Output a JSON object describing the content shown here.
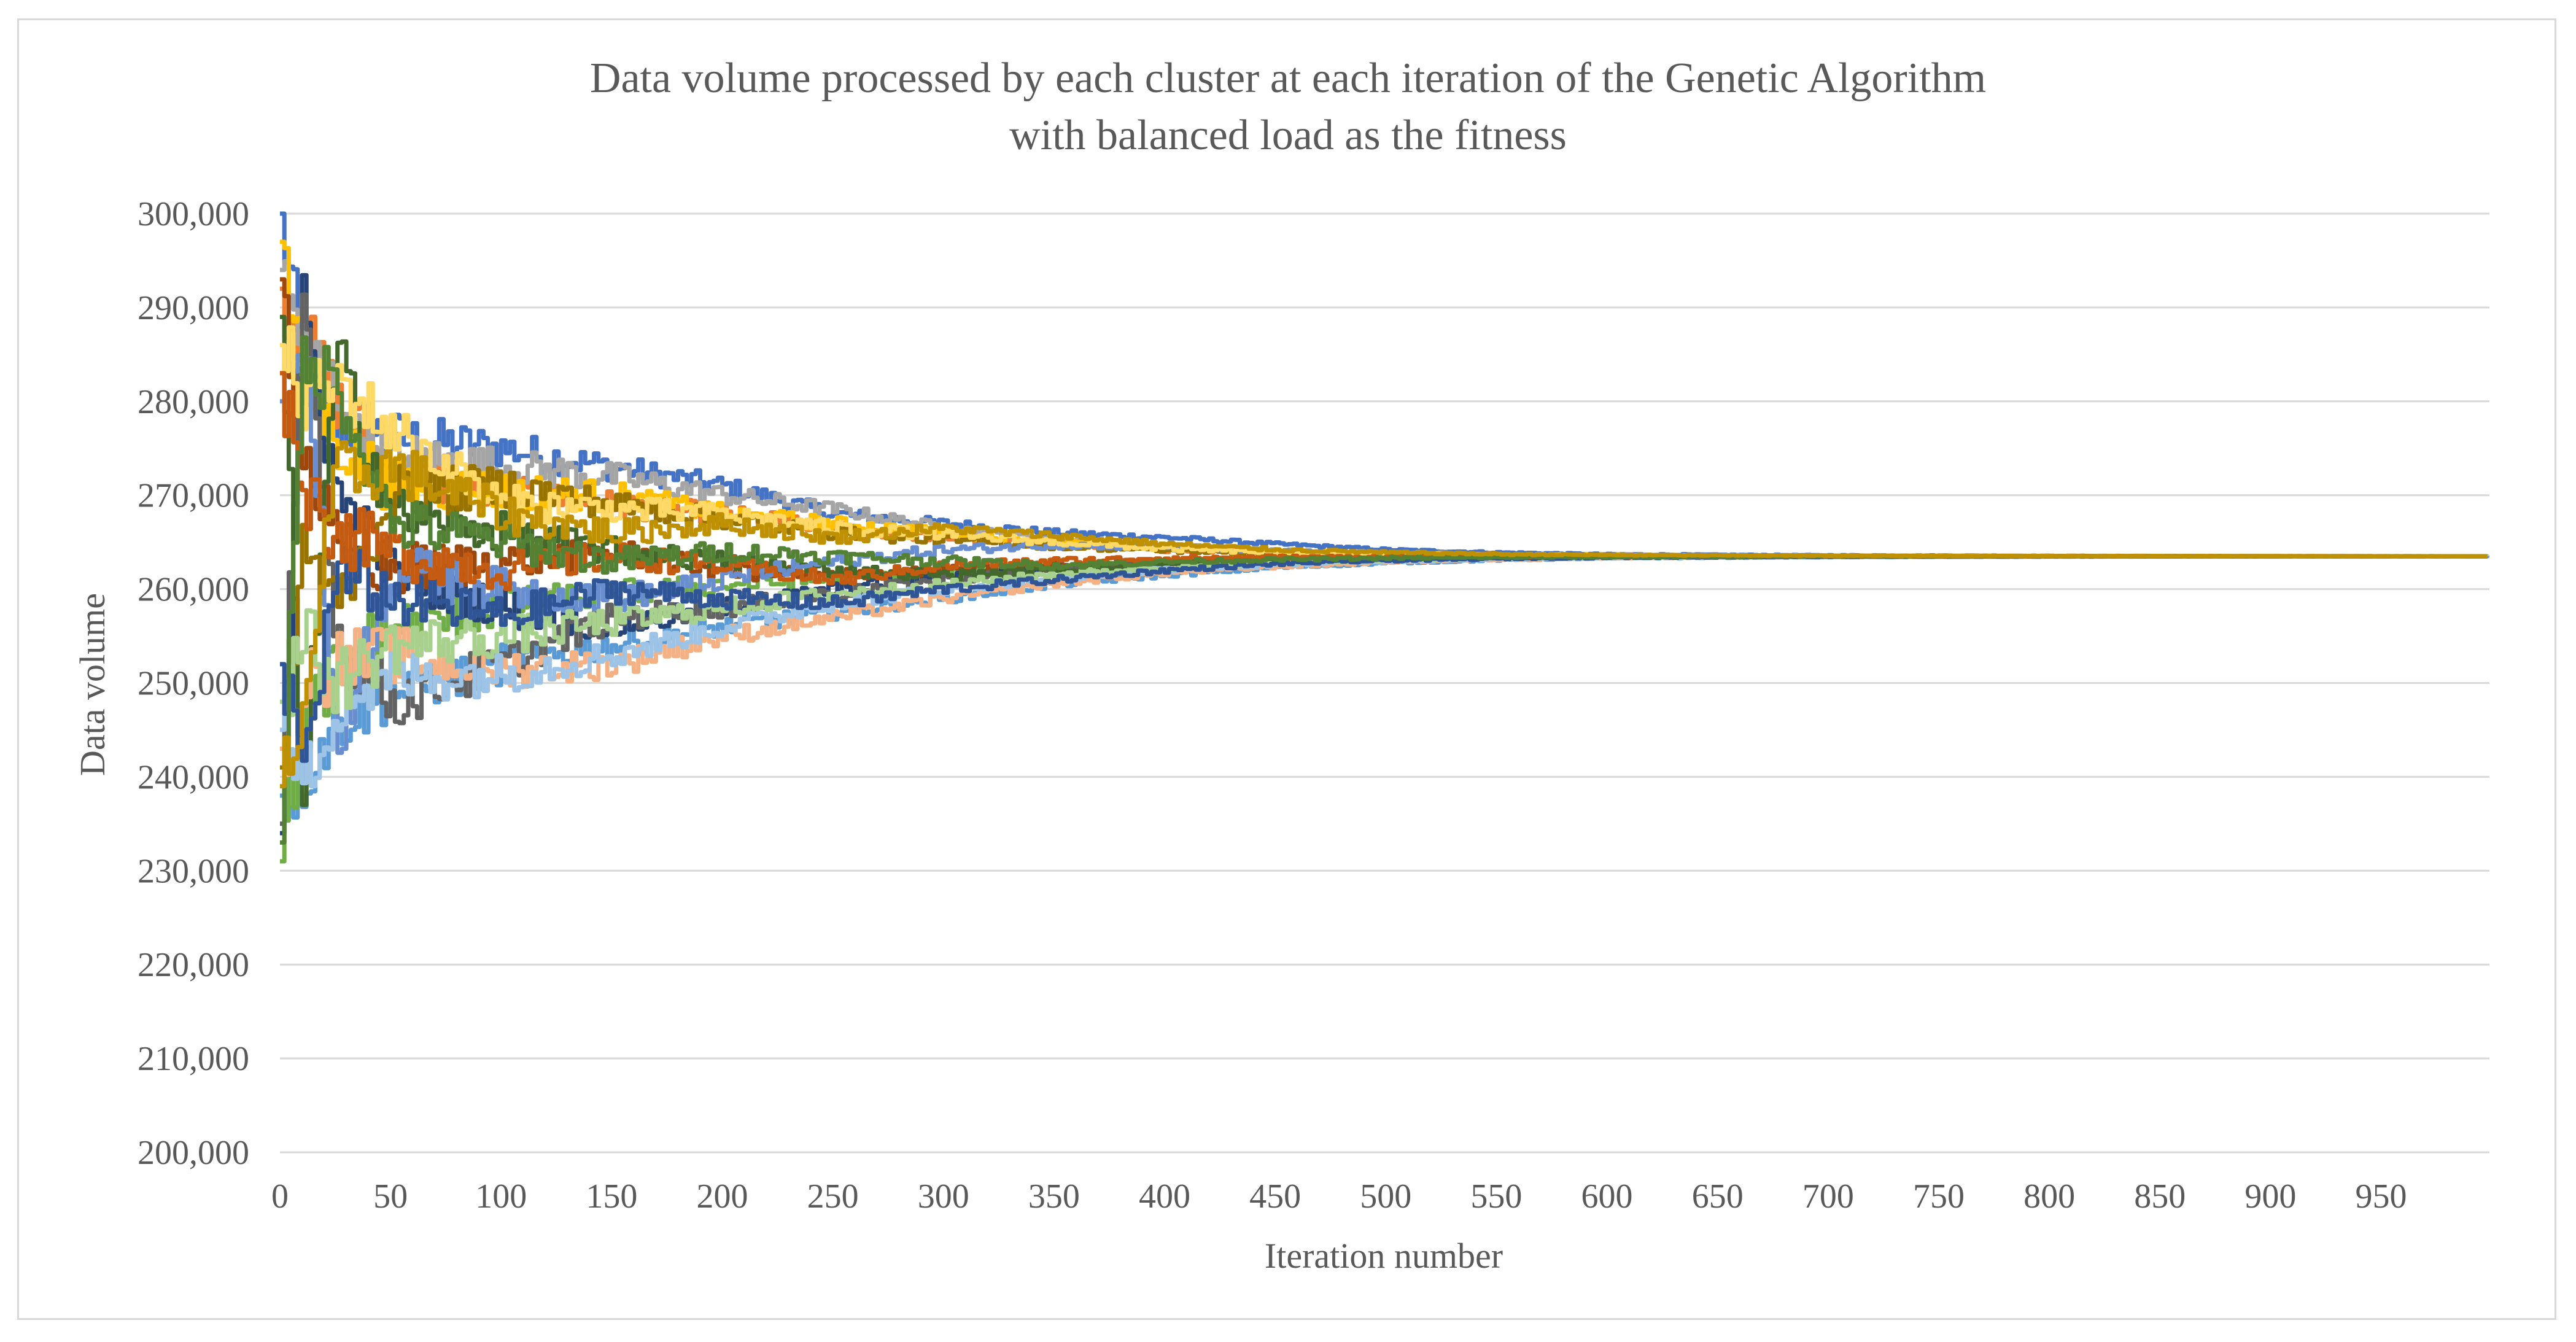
{
  "chart_data": {
    "type": "line",
    "title": "Data volume processed by each cluster at each iteration of the Genetic Algorithm",
    "subtitle": "with balanced load as the fitness",
    "xlabel": "Iteration number",
    "ylabel": "Data volume",
    "xlim": [
      0,
      999
    ],
    "ylim": [
      200000,
      300000
    ],
    "x_ticks": [
      0,
      50,
      100,
      150,
      200,
      250,
      300,
      350,
      400,
      450,
      500,
      550,
      600,
      650,
      700,
      750,
      800,
      850,
      900,
      950
    ],
    "x_tick_labels": [
      "0",
      "50",
      "100",
      "150",
      "200",
      "250",
      "300",
      "350",
      "400",
      "450",
      "500",
      "550",
      "600",
      "650",
      "700",
      "750",
      "800",
      "850",
      "900",
      "950"
    ],
    "y_ticks": [
      200000,
      210000,
      220000,
      230000,
      240000,
      250000,
      260000,
      270000,
      280000,
      290000,
      300000
    ],
    "y_tick_labels": [
      "200,000",
      "210,000",
      "220,000",
      "230,000",
      "240,000",
      "250,000",
      "260,000",
      "270,000",
      "280,000",
      "290,000",
      "300,000"
    ],
    "grid": true,
    "legend": "none",
    "converged_value": 263500,
    "series": [
      {
        "color": "#4472c4",
        "x": [
          0,
          10,
          25,
          50,
          100,
          150,
          200,
          250,
          300,
          350,
          400,
          450,
          500,
          550,
          600,
          700,
          800,
          900,
          999
        ],
        "values": [
          300000,
          283000,
          278000,
          276000,
          275000,
          273000,
          271000,
          268000,
          267000,
          266000,
          265500,
          264800,
          264200,
          263900,
          263700,
          263600,
          263550,
          263520,
          263500
        ]
      },
      {
        "color": "#ed7d31",
        "x": [
          0,
          10,
          25,
          50,
          100,
          150,
          200,
          250,
          300,
          350,
          400,
          450,
          500,
          550,
          600,
          700,
          800,
          900,
          999
        ],
        "values": [
          292000,
          287000,
          280000,
          272000,
          270000,
          269000,
          268000,
          266500,
          265500,
          264800,
          264200,
          263900,
          263800,
          263700,
          263600,
          263550,
          263520,
          263510,
          263500
        ]
      },
      {
        "color": "#a5a5a5",
        "x": [
          0,
          10,
          25,
          50,
          100,
          150,
          200,
          250,
          300,
          350,
          400,
          450,
          500,
          550,
          600,
          700,
          800,
          900,
          999
        ],
        "values": [
          294000,
          286000,
          281000,
          274000,
          273000,
          272000,
          270000,
          268500,
          266500,
          265300,
          264600,
          264100,
          263900,
          263700,
          263600,
          263550,
          263520,
          263510,
          263500
        ]
      },
      {
        "color": "#ffc000",
        "x": [
          0,
          10,
          25,
          50,
          100,
          150,
          200,
          250,
          300,
          350,
          400,
          450,
          500,
          550,
          600,
          700,
          800,
          900,
          999
        ],
        "values": [
          297000,
          282000,
          276000,
          271000,
          270500,
          270000,
          268000,
          267000,
          266000,
          265000,
          264400,
          264000,
          263800,
          263650,
          263600,
          263550,
          263520,
          263510,
          263500
        ]
      },
      {
        "color": "#5b9bd5",
        "x": [
          0,
          10,
          25,
          50,
          100,
          150,
          200,
          250,
          300,
          350,
          400,
          450,
          500,
          550,
          600,
          700,
          800,
          900,
          999
        ],
        "values": [
          238000,
          240000,
          246000,
          249000,
          252000,
          254000,
          256000,
          257500,
          259000,
          260500,
          261500,
          262300,
          262800,
          263100,
          263300,
          263420,
          263470,
          263490,
          263500
        ]
      },
      {
        "color": "#70ad47",
        "x": [
          0,
          10,
          25,
          50,
          100,
          150,
          200,
          250,
          300,
          350,
          400,
          450,
          500,
          550,
          600,
          700,
          800,
          900,
          999
        ],
        "values": [
          231000,
          245000,
          252000,
          256000,
          258000,
          259500,
          260500,
          261000,
          261800,
          262200,
          262700,
          263000,
          263200,
          263350,
          263420,
          263470,
          263490,
          263500,
          263500
        ]
      },
      {
        "color": "#264478",
        "x": [
          0,
          10,
          25,
          50,
          100,
          150,
          200,
          250,
          300,
          350,
          400,
          450,
          500,
          550,
          600,
          700,
          800,
          900,
          999
        ],
        "values": [
          234000,
          290000,
          270000,
          262000,
          258000,
          256000,
          258000,
          260000,
          261500,
          262300,
          262900,
          263200,
          263350,
          263420,
          263460,
          263490,
          263500,
          263500,
          263500
        ]
      },
      {
        "color": "#9e480e",
        "x": [
          0,
          10,
          25,
          50,
          100,
          150,
          200,
          250,
          300,
          350,
          400,
          450,
          500,
          550,
          600,
          700,
          800,
          900,
          999
        ],
        "values": [
          293000,
          275000,
          264000,
          262000,
          263000,
          264000,
          262000,
          261500,
          262000,
          262500,
          263000,
          263200,
          263350,
          263420,
          263460,
          263490,
          263500,
          263500,
          263500
        ]
      },
      {
        "color": "#636363",
        "x": [
          0,
          10,
          25,
          50,
          100,
          150,
          200,
          250,
          300,
          350,
          400,
          450,
          500,
          550,
          600,
          700,
          800,
          900,
          999
        ],
        "values": [
          235000,
          292000,
          255000,
          248000,
          252000,
          257000,
          258000,
          259500,
          261000,
          262000,
          262800,
          263100,
          263300,
          263400,
          263450,
          263480,
          263490,
          263500,
          263500
        ]
      },
      {
        "color": "#43682b",
        "x": [
          0,
          10,
          25,
          50,
          100,
          150,
          200,
          250,
          300,
          350,
          400,
          450,
          500,
          550,
          600,
          700,
          800,
          900,
          999
        ],
        "values": [
          289000,
          238000,
          285000,
          268000,
          266000,
          264000,
          263000,
          262000,
          261500,
          262000,
          262600,
          263000,
          263250,
          263380,
          263440,
          263480,
          263490,
          263500,
          263500
        ]
      },
      {
        "color": "#997300",
        "x": [
          0,
          10,
          25,
          50,
          100,
          150,
          200,
          250,
          300,
          350,
          400,
          450,
          500,
          550,
          600,
          700,
          800,
          900,
          999
        ],
        "values": [
          241000,
          265000,
          258000,
          270000,
          271000,
          269000,
          267500,
          266000,
          265200,
          264600,
          264100,
          263800,
          263650,
          263580,
          263540,
          263520,
          263510,
          263500,
          263500
        ]
      },
      {
        "color": "#698ed0",
        "x": [
          0,
          10,
          25,
          50,
          100,
          150,
          200,
          250,
          300,
          350,
          400,
          450,
          500,
          550,
          600,
          700,
          800,
          900,
          999
        ],
        "values": [
          280000,
          289000,
          244000,
          262000,
          260000,
          259000,
          261000,
          263000,
          264200,
          264700,
          264500,
          264000,
          263750,
          263620,
          263560,
          263520,
          263510,
          263500,
          263500
        ]
      },
      {
        "color": "#f4b183",
        "x": [
          0,
          10,
          25,
          50,
          100,
          150,
          200,
          250,
          300,
          350,
          400,
          450,
          500,
          550,
          600,
          700,
          800,
          900,
          999
        ],
        "values": [
          243000,
          250000,
          252000,
          253000,
          251500,
          252000,
          255000,
          257000,
          259000,
          260600,
          261700,
          262400,
          262900,
          263150,
          263300,
          263420,
          263470,
          263490,
          263500
        ]
      },
      {
        "color": "#9dc3e6",
        "x": [
          0,
          10,
          25,
          50,
          100,
          150,
          200,
          250,
          300,
          350,
          400,
          450,
          500,
          550,
          600,
          700,
          800,
          900,
          999
        ],
        "values": [
          245000,
          239000,
          248000,
          250500,
          251000,
          253000,
          256000,
          258500,
          260000,
          261200,
          262100,
          262600,
          263000,
          263200,
          263330,
          263430,
          263470,
          263490,
          263500
        ]
      },
      {
        "color": "#a9d18e",
        "x": [
          0,
          10,
          25,
          50,
          100,
          150,
          200,
          250,
          300,
          350,
          400,
          450,
          500,
          550,
          600,
          700,
          800,
          900,
          999
        ],
        "values": [
          248000,
          255000,
          250000,
          254000,
          255000,
          256500,
          258000,
          259500,
          260500,
          261600,
          262300,
          262800,
          263100,
          263280,
          263380,
          263450,
          263480,
          263490,
          263500
        ]
      },
      {
        "color": "#ffd966",
        "x": [
          0,
          10,
          25,
          50,
          100,
          150,
          200,
          250,
          300,
          350,
          400,
          450,
          500,
          550,
          600,
          700,
          800,
          900,
          999
        ],
        "values": [
          286000,
          280000,
          282000,
          277000,
          269000,
          268500,
          268000,
          266500,
          265800,
          265000,
          264300,
          263900,
          263700,
          263600,
          263550,
          263520,
          263510,
          263500,
          263500
        ]
      },
      {
        "color": "#2f5597",
        "x": [
          0,
          10,
          25,
          50,
          100,
          150,
          200,
          250,
          300,
          350,
          400,
          450,
          500,
          550,
          600,
          700,
          800,
          900,
          999
        ],
        "values": [
          252000,
          241000,
          262000,
          259000,
          257000,
          260000,
          259000,
          258500,
          260000,
          261000,
          262000,
          262700,
          263050,
          263250,
          263360,
          263440,
          263480,
          263490,
          263500
        ]
      },
      {
        "color": "#c55a11",
        "x": [
          0,
          10,
          25,
          50,
          100,
          150,
          200,
          250,
          300,
          350,
          400,
          450,
          500,
          550,
          600,
          700,
          800,
          900,
          999
        ],
        "values": [
          283000,
          271000,
          266000,
          264000,
          262000,
          263500,
          262500,
          261000,
          262500,
          263000,
          263300,
          263400,
          263450,
          263470,
          263480,
          263490,
          263500,
          263500,
          263500
        ]
      },
      {
        "color": "#548235",
        "x": [
          0,
          10,
          25,
          50,
          100,
          150,
          200,
          250,
          300,
          350,
          400,
          450,
          500,
          550,
          600,
          700,
          800,
          900,
          999
        ],
        "values": [
          233000,
          284000,
          282000,
          267000,
          265000,
          263000,
          264000,
          263500,
          263000,
          262500,
          262900,
          263150,
          263300,
          263380,
          263430,
          263470,
          263490,
          263500,
          263500
        ]
      },
      {
        "color": "#bf9000",
        "x": [
          0,
          10,
          25,
          50,
          100,
          150,
          200,
          250,
          300,
          350,
          400,
          450,
          500,
          550,
          600,
          700,
          800,
          900,
          999
        ],
        "values": [
          239000,
          247000,
          272000,
          273000,
          268000,
          266000,
          267000,
          265500,
          266500,
          265700,
          264800,
          264200,
          263900,
          263720,
          263620,
          263550,
          263520,
          263510,
          263500
        ]
      }
    ]
  }
}
